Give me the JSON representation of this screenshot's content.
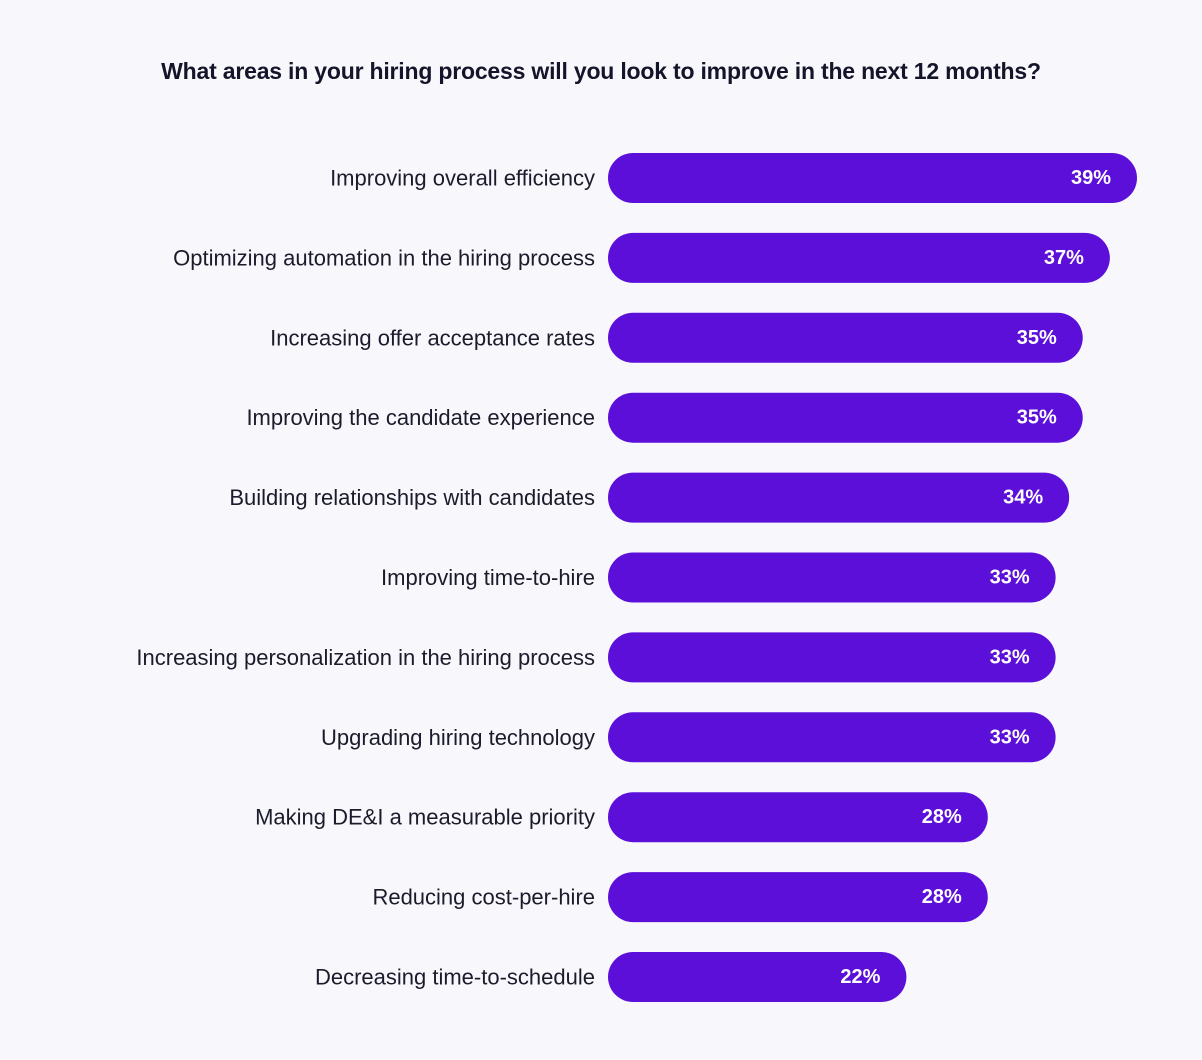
{
  "chart_data": {
    "type": "bar",
    "orientation": "horizontal",
    "title": "What areas in your hiring process will you look to improve in the next 12 months?",
    "categories": [
      "Improving overall efficiency",
      "Optimizing automation in the hiring process",
      "Increasing offer acceptance rates",
      "Improving the candidate experience",
      "Building relationships with candidates",
      "Improving time-to-hire",
      "Increasing personalization in the hiring process",
      "Upgrading hiring technology",
      "Making DE&I a measurable priority",
      "Reducing cost-per-hire",
      "Decreasing time-to-schedule"
    ],
    "values": [
      39,
      37,
      35,
      35,
      34,
      33,
      33,
      33,
      28,
      28,
      22
    ],
    "value_labels": [
      "39%",
      "37%",
      "35%",
      "35%",
      "34%",
      "33%",
      "33%",
      "33%",
      "28%",
      "28%",
      "22%"
    ],
    "unit": "%",
    "bar_color": "#5b0fd9",
    "value_label_color": "#ffffff",
    "background_color": "#f8f8fc",
    "grid": false,
    "legend": "none"
  }
}
